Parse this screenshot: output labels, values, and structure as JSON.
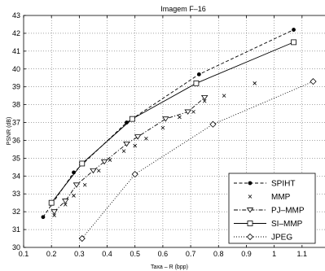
{
  "chart_data": {
    "type": "line",
    "title": "Imagem F–16",
    "xlabel": "Taxa – R (bpp)",
    "ylabel": "PSNR (dB)",
    "xlim": [
      0.1,
      1.2
    ],
    "ylim": [
      30,
      43
    ],
    "xticks": [
      "0.1",
      "0.2",
      "0.3",
      "0.4",
      "0.5",
      "0.6",
      "0.7",
      "0.8",
      "0.9",
      "1",
      "1.1",
      "1.2"
    ],
    "yticks": [
      "30",
      "31",
      "32",
      "33",
      "34",
      "35",
      "36",
      "37",
      "38",
      "39",
      "40",
      "41",
      "42",
      "43"
    ],
    "grid": true,
    "legend_position": "bottom-right",
    "series": [
      {
        "name": "SPIHT",
        "marker": "dot",
        "line": "dashed",
        "x": [
          0.17,
          0.28,
          0.47,
          0.73,
          1.07
        ],
        "y": [
          31.7,
          34.2,
          37.0,
          39.7,
          42.2
        ]
      },
      {
        "name": "MMP",
        "marker": "x",
        "line": "none",
        "x": [
          0.21,
          0.25,
          0.28,
          0.32,
          0.37,
          0.41,
          0.46,
          0.5,
          0.54,
          0.6,
          0.66,
          0.71,
          0.75,
          0.82,
          0.93
        ],
        "y": [
          31.8,
          32.4,
          32.9,
          33.5,
          34.3,
          34.9,
          35.4,
          35.7,
          36.1,
          36.7,
          37.3,
          37.6,
          38.2,
          38.5,
          39.2
        ]
      },
      {
        "name": "PJ–MMP",
        "marker": "triangle-down",
        "line": "dash-dot",
        "x": [
          0.21,
          0.25,
          0.29,
          0.35,
          0.39,
          0.47,
          0.51,
          0.61,
          0.69,
          0.75
        ],
        "y": [
          32.0,
          32.6,
          33.5,
          34.3,
          34.8,
          35.8,
          36.2,
          37.2,
          37.6,
          38.4
        ]
      },
      {
        "name": "SI–MMP",
        "marker": "square",
        "line": "solid",
        "x": [
          0.2,
          0.31,
          0.49,
          0.72,
          1.07
        ],
        "y": [
          32.5,
          34.7,
          37.2,
          39.2,
          41.5
        ]
      },
      {
        "name": "JPEG",
        "marker": "diamond",
        "line": "dotted",
        "x": [
          0.31,
          0.5,
          0.78,
          1.14
        ],
        "y": [
          30.5,
          34.1,
          36.9,
          39.3
        ]
      }
    ]
  }
}
